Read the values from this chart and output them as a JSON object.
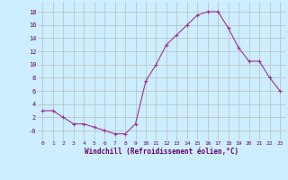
{
  "hours": [
    0,
    1,
    2,
    3,
    4,
    5,
    6,
    7,
    8,
    9,
    10,
    11,
    12,
    13,
    14,
    15,
    16,
    17,
    18,
    19,
    20,
    21,
    22,
    23
  ],
  "windchill": [
    3,
    3,
    2,
    1,
    1,
    0.5,
    0,
    -0.5,
    -0.5,
    1,
    7.5,
    10,
    13,
    14.5,
    16,
    17.5,
    18,
    18,
    15.5,
    12.5,
    10.5,
    10.5,
    8,
    6
  ],
  "line_color": "#993399",
  "marker": "+",
  "bg_color": "#cceeff",
  "grid_color": "#bbbbbb",
  "xlabel": "Windchill (Refroidissement éolien,°C)",
  "ylabel_ticks": [
    0,
    2,
    4,
    6,
    8,
    10,
    12,
    14,
    16,
    18
  ],
  "ylim": [
    -1.5,
    19.5
  ],
  "xlim": [
    -0.5,
    23.5
  ],
  "xtick_labels": [
    "0",
    "1",
    "2",
    "3",
    "4",
    "5",
    "6",
    "7",
    "8",
    "9",
    "10",
    "11",
    "12",
    "13",
    "14",
    "15",
    "16",
    "17",
    "18",
    "19",
    "20",
    "21",
    "22",
    "23"
  ]
}
